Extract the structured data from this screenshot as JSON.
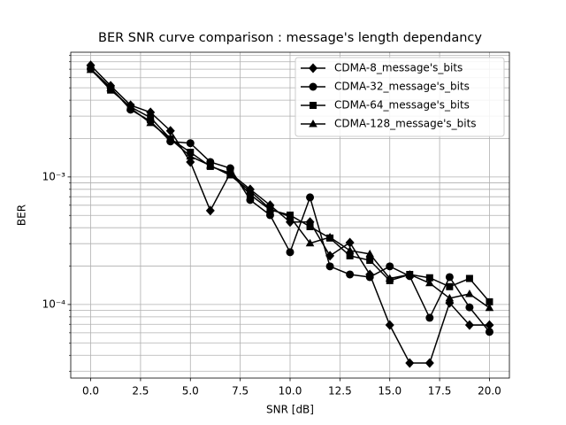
{
  "chart_data": {
    "type": "line",
    "title": "BER SNR curve comparison : message's length dependancy",
    "x_label": "SNR [dB]",
    "y_label": "BER",
    "yscale": "log",
    "grid": true,
    "minor_grid": true,
    "legend_loc": "upper right",
    "x": [
      0,
      1,
      2,
      3,
      4,
      5,
      6,
      7,
      8,
      9,
      10,
      11,
      12,
      13,
      14,
      15,
      16,
      17,
      18,
      19,
      20
    ],
    "xlim": [
      -1,
      21
    ],
    "ylim": [
      2.65e-05,
      0.0095
    ],
    "xticks": [
      {
        "value": 0,
        "label": "0.0"
      },
      {
        "value": 2.5,
        "label": "2.5"
      },
      {
        "value": 5,
        "label": "5.0"
      },
      {
        "value": 7.5,
        "label": "7.5"
      },
      {
        "value": 10,
        "label": "10.0"
      },
      {
        "value": 12.5,
        "label": "12.5"
      },
      {
        "value": 15,
        "label": "15.0"
      },
      {
        "value": 17.5,
        "label": "17.5"
      },
      {
        "value": 20,
        "label": "20.0"
      }
    ],
    "yticks": [
      {
        "value": 0.0001,
        "label": "10⁻⁴"
      },
      {
        "value": 0.001,
        "label": "10⁻³"
      }
    ],
    "series": [
      {
        "name": "CDMA-8_message's_bits",
        "color": "#000000",
        "marker": "diamond",
        "values": [
          0.0075,
          0.00519,
          0.00365,
          0.00321,
          0.0023,
          0.00131,
          0.000545,
          0.00107,
          0.0008,
          0.0006,
          0.000443,
          0.000443,
          0.000241,
          0.000306,
          0.000172,
          6.9e-05,
          3.48e-05,
          3.48e-05,
          0.000103,
          6.9e-05,
          6.9e-05
        ]
      },
      {
        "name": "CDMA-32_message's_bits",
        "color": "#000000",
        "marker": "circle",
        "values": [
          0.00703,
          0.00502,
          0.00337,
          0.00274,
          0.0019,
          0.00184,
          0.00131,
          0.00117,
          0.00066,
          0.000502,
          0.000257,
          0.000692,
          0.000199,
          0.000172,
          0.000164,
          0.000199,
          0.000167,
          7.87e-05,
          0.000164,
          9.5e-05,
          6.1e-05
        ]
      },
      {
        "name": "CDMA-64_message's_bits",
        "color": "#000000",
        "marker": "square",
        "values": [
          0.00703,
          0.0048,
          0.00354,
          0.00292,
          0.00199,
          0.00156,
          0.00121,
          0.00107,
          0.000726,
          0.000553,
          0.000502,
          0.000408,
          0.000332,
          0.000241,
          0.000222,
          0.000154,
          0.000172,
          0.000162,
          0.000138,
          0.00016,
          0.000105
        ]
      },
      {
        "name": "CDMA-128_message's_bits",
        "color": "#000000",
        "marker": "triangle",
        "values": [
          0.00692,
          0.00496,
          0.00347,
          0.00265,
          0.00199,
          0.00145,
          0.00123,
          0.00103,
          0.000775,
          0.000562,
          0.000487,
          0.000302,
          0.000337,
          0.000265,
          0.000249,
          0.00016,
          0.000172,
          0.000147,
          0.000112,
          0.000121,
          9.4e-05
        ]
      }
    ]
  }
}
